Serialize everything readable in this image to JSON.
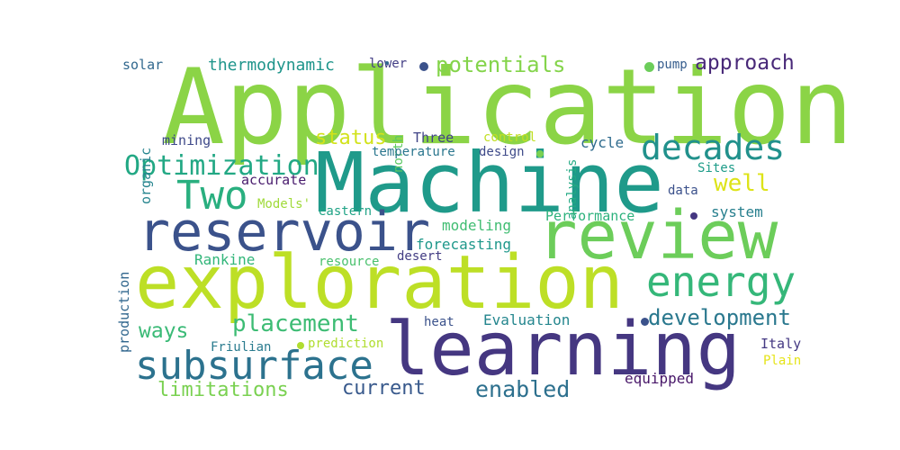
{
  "words": [
    {
      "text": "Application",
      "color": "#8bd446"
    },
    {
      "text": "Machine",
      "color": "#1f9a8a"
    },
    {
      "text": "review",
      "color": "#6ccd5a"
    },
    {
      "text": "exploration",
      "color": "#bddf26"
    },
    {
      "text": "learning",
      "color": "#453781"
    },
    {
      "text": "reservoir",
      "color": "#3b528b"
    },
    {
      "text": "subsurface",
      "color": "#2c728e"
    },
    {
      "text": "decades",
      "color": "#21918c"
    },
    {
      "text": "energy",
      "color": "#35b779"
    },
    {
      "text": "Two",
      "color": "#29af7f"
    },
    {
      "text": "Optimization",
      "color": "#22a884"
    },
    {
      "text": "placement",
      "color": "#3dbc74"
    },
    {
      "text": "development",
      "color": "#2a788e"
    },
    {
      "text": "enabled",
      "color": "#2d708e"
    },
    {
      "text": "approach",
      "color": "#482878"
    },
    {
      "text": "potentials",
      "color": "#84d44b"
    },
    {
      "text": "status",
      "color": "#d2e21b"
    },
    {
      "text": "well",
      "color": "#dde318"
    },
    {
      "text": "ways",
      "color": "#3aba76"
    },
    {
      "text": "limitations",
      "color": "#7ad151"
    },
    {
      "text": "current",
      "color": "#38598c"
    },
    {
      "text": "thermodynamic",
      "color": "#1f958b"
    },
    {
      "text": "solar",
      "color": "#31688e"
    },
    {
      "text": "organic",
      "color": "#25848e"
    },
    {
      "text": "mining",
      "color": "#3e4989"
    },
    {
      "text": "lower",
      "color": "#433e85"
    },
    {
      "text": "north",
      "color": "#5cc863"
    },
    {
      "text": "Three",
      "color": "#414487"
    },
    {
      "text": "control",
      "color": "#c2df23"
    },
    {
      "text": "analysis",
      "color": "#23a983"
    },
    {
      "text": "pump",
      "color": "#365d8d"
    },
    {
      "text": "temperature",
      "color": "#2a768e"
    },
    {
      "text": "design",
      "color": "#3e4a89"
    },
    {
      "text": "cycle",
      "color": "#2f6b8e"
    },
    {
      "text": "accurate",
      "color": "#481b6d"
    },
    {
      "text": "Models'",
      "color": "#a0da39"
    },
    {
      "text": "eastern",
      "color": "#20a386"
    },
    {
      "text": "Sites",
      "color": "#1e9c89"
    },
    {
      "text": "data",
      "color": "#3b518b"
    },
    {
      "text": "system",
      "color": "#277f8e"
    },
    {
      "text": "Performance",
      "color": "#2db27d"
    },
    {
      "text": "modeling",
      "color": "#40bd72"
    },
    {
      "text": "forecasting",
      "color": "#1f988b"
    },
    {
      "text": "production",
      "color": "#31678e"
    },
    {
      "text": "Rankine",
      "color": "#32b67a"
    },
    {
      "text": "resource",
      "color": "#4ac16d"
    },
    {
      "text": "desert",
      "color": "#433d84"
    },
    {
      "text": "heat",
      "color": "#3b528b"
    },
    {
      "text": "Evaluation",
      "color": "#24868e"
    },
    {
      "text": "Friulian",
      "color": "#297b8e"
    },
    {
      "text": "prediction",
      "color": "#b0dd2f"
    },
    {
      "text": "Italy",
      "color": "#443983"
    },
    {
      "text": "Plain",
      "color": "#e5e419"
    },
    {
      "text": "equipped",
      "color": "#481769"
    }
  ],
  "dots": [
    {
      "color": "#3b528b"
    },
    {
      "color": "#6ccd5a"
    },
    {
      "color": "#7ad151"
    },
    {
      "color": "#453781"
    },
    {
      "color": "#3b528b"
    },
    {
      "color": "#b0dd2f"
    },
    {
      "color": "#31688e"
    }
  ]
}
